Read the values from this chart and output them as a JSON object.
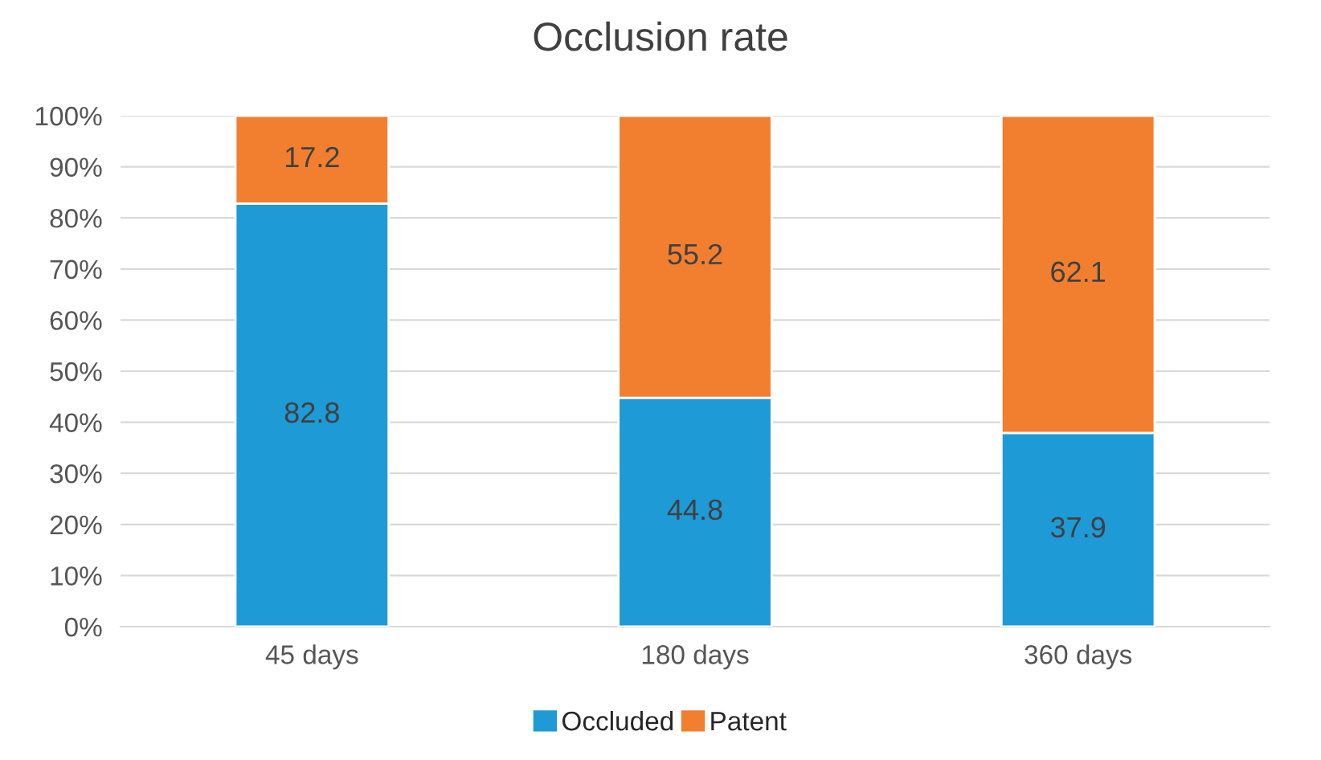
{
  "chart_data": {
    "type": "bar",
    "title": "Occlusion rate",
    "stacked": true,
    "categories": [
      "45 days",
      "180 days",
      "360 days"
    ],
    "series": [
      {
        "name": "Occluded",
        "color": "#1e9ad6",
        "values": [
          82.8,
          44.8,
          37.9
        ]
      },
      {
        "name": "Patent",
        "color": "#f27f30",
        "values": [
          17.2,
          55.2,
          62.1
        ]
      }
    ],
    "ylim": [
      0,
      100
    ],
    "yticks": [
      {
        "value": 0,
        "label": "0%"
      },
      {
        "value": 10,
        "label": "10%"
      },
      {
        "value": 20,
        "label": "20%"
      },
      {
        "value": 30,
        "label": "30%"
      },
      {
        "value": 40,
        "label": "40%"
      },
      {
        "value": 50,
        "label": "50%"
      },
      {
        "value": 60,
        "label": "60%"
      },
      {
        "value": 70,
        "label": "70%"
      },
      {
        "value": 80,
        "label": "80%"
      },
      {
        "value": 90,
        "label": "90%"
      },
      {
        "value": 100,
        "label": "100%"
      }
    ],
    "grid": "y",
    "legend": "bottom",
    "data_labels": true
  }
}
